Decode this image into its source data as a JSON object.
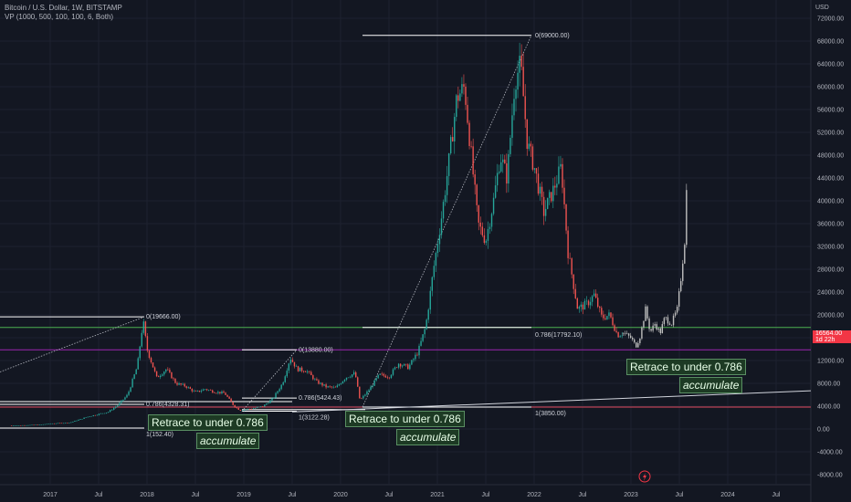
{
  "header": {
    "symbol_line": "Bitcoin / U.S. Dollar, 1W, BITSTAMP",
    "indicator_line": "VP (1000, 500, 100, 100, 6, Both)"
  },
  "currency": "USD",
  "price_badge": {
    "value": "16564.00",
    "countdown": "1d 22h",
    "color": "#f23645"
  },
  "annotations": [
    {
      "line1": "Retrace to under 0.786",
      "line2": "accumulate"
    },
    {
      "line1": "Retrace to under 0.786",
      "line2": "accumulate"
    },
    {
      "line1": "Retrace to under 0.786",
      "line2": "accumulate"
    }
  ],
  "fib_labels": [
    "0(19666.00)",
    "0.786(4328.31)",
    "1(152.40)",
    "0(13880.00)",
    "0.786(5424.43)",
    "1(3122.28)",
    "0(69000.00)",
    "0.786(17792.10)",
    "1(3850.00)"
  ],
  "colors": {
    "up": "#26a69a",
    "down": "#ef5350",
    "projection": "#bfbfbf",
    "support": "#4caf50",
    "resistance": "#9c27b0",
    "background": "#131722"
  },
  "chart_data": {
    "type": "candlestick",
    "x_tick_labels": [
      "2017",
      "Jul",
      "2018",
      "Jul",
      "2019",
      "Jul",
      "2020",
      "Jul",
      "2021",
      "Jul",
      "2022",
      "Jul",
      "2023",
      "Jul",
      "2024",
      "Jul"
    ],
    "y_tick_labels": [
      "72000.00",
      "68000.00",
      "64000.00",
      "60000.00",
      "56000.00",
      "52000.00",
      "48000.00",
      "44000.00",
      "40000.00",
      "36000.00",
      "32000.00",
      "28000.00",
      "24000.00",
      "20000.00",
      "16000.00",
      "12000.00",
      "8000.00",
      "4000.00",
      "0.00",
      "-4000.00",
      "-8000.00"
    ],
    "ylim": [
      -8600,
      72600
    ],
    "xlim": [
      2016.56,
      2024.85
    ],
    "price_path": [
      [
        2016.6,
        580
      ],
      [
        2016.9,
        750
      ],
      [
        2017.0,
        950
      ],
      [
        2017.2,
        1100
      ],
      [
        2017.4,
        2200
      ],
      [
        2017.5,
        2600
      ],
      [
        2017.6,
        3000
      ],
      [
        2017.7,
        4200
      ],
      [
        2017.8,
        6000
      ],
      [
        2017.9,
        11000
      ],
      [
        2017.96,
        19000
      ],
      [
        2018.0,
        14000
      ],
      [
        2018.1,
        9000
      ],
      [
        2018.2,
        10500
      ],
      [
        2018.3,
        8000
      ],
      [
        2018.4,
        7500
      ],
      [
        2018.5,
        6400
      ],
      [
        2018.6,
        7000
      ],
      [
        2018.7,
        6500
      ],
      [
        2018.8,
        6300
      ],
      [
        2018.9,
        4000
      ],
      [
        2018.96,
        3300
      ],
      [
        2019.1,
        3600
      ],
      [
        2019.2,
        4000
      ],
      [
        2019.3,
        5300
      ],
      [
        2019.4,
        8000
      ],
      [
        2019.48,
        12500
      ],
      [
        2019.55,
        10500
      ],
      [
        2019.65,
        10200
      ],
      [
        2019.75,
        8300
      ],
      [
        2019.85,
        7400
      ],
      [
        2019.95,
        7200
      ],
      [
        2020.05,
        9000
      ],
      [
        2020.15,
        9800
      ],
      [
        2020.2,
        5000
      ],
      [
        2020.3,
        7000
      ],
      [
        2020.4,
        9500
      ],
      [
        2020.5,
        9200
      ],
      [
        2020.6,
        11500
      ],
      [
        2020.7,
        10800
      ],
      [
        2020.8,
        13500
      ],
      [
        2020.88,
        18000
      ],
      [
        2020.96,
        28000
      ],
      [
        2021.05,
        38000
      ],
      [
        2021.12,
        47000
      ],
      [
        2021.2,
        58000
      ],
      [
        2021.28,
        60000
      ],
      [
        2021.35,
        48000
      ],
      [
        2021.42,
        36000
      ],
      [
        2021.5,
        33000
      ],
      [
        2021.58,
        40000
      ],
      [
        2021.65,
        48000
      ],
      [
        2021.72,
        44000
      ],
      [
        2021.8,
        61000
      ],
      [
        2021.86,
        64000
      ],
      [
        2021.93,
        50000
      ],
      [
        2022.0,
        46000
      ],
      [
        2022.1,
        38000
      ],
      [
        2022.2,
        42000
      ],
      [
        2022.28,
        46000
      ],
      [
        2022.35,
        31000
      ],
      [
        2022.45,
        21000
      ],
      [
        2022.55,
        22000
      ],
      [
        2022.62,
        23500
      ],
      [
        2022.7,
        19500
      ],
      [
        2022.78,
        20000
      ],
      [
        2022.86,
        16500
      ],
      [
        2022.92,
        16800
      ]
    ],
    "projection_path": [
      [
        2022.92,
        16800
      ],
      [
        2023.0,
        16000
      ],
      [
        2023.05,
        14500
      ],
      [
        2023.1,
        16500
      ],
      [
        2023.15,
        21000
      ],
      [
        2023.2,
        17000
      ],
      [
        2023.25,
        18500
      ],
      [
        2023.3,
        16800
      ],
      [
        2023.35,
        19500
      ],
      [
        2023.42,
        18500
      ],
      [
        2023.48,
        21000
      ],
      [
        2023.52,
        27000
      ],
      [
        2023.56,
        34000
      ],
      [
        2023.58,
        45000
      ]
    ]
  }
}
